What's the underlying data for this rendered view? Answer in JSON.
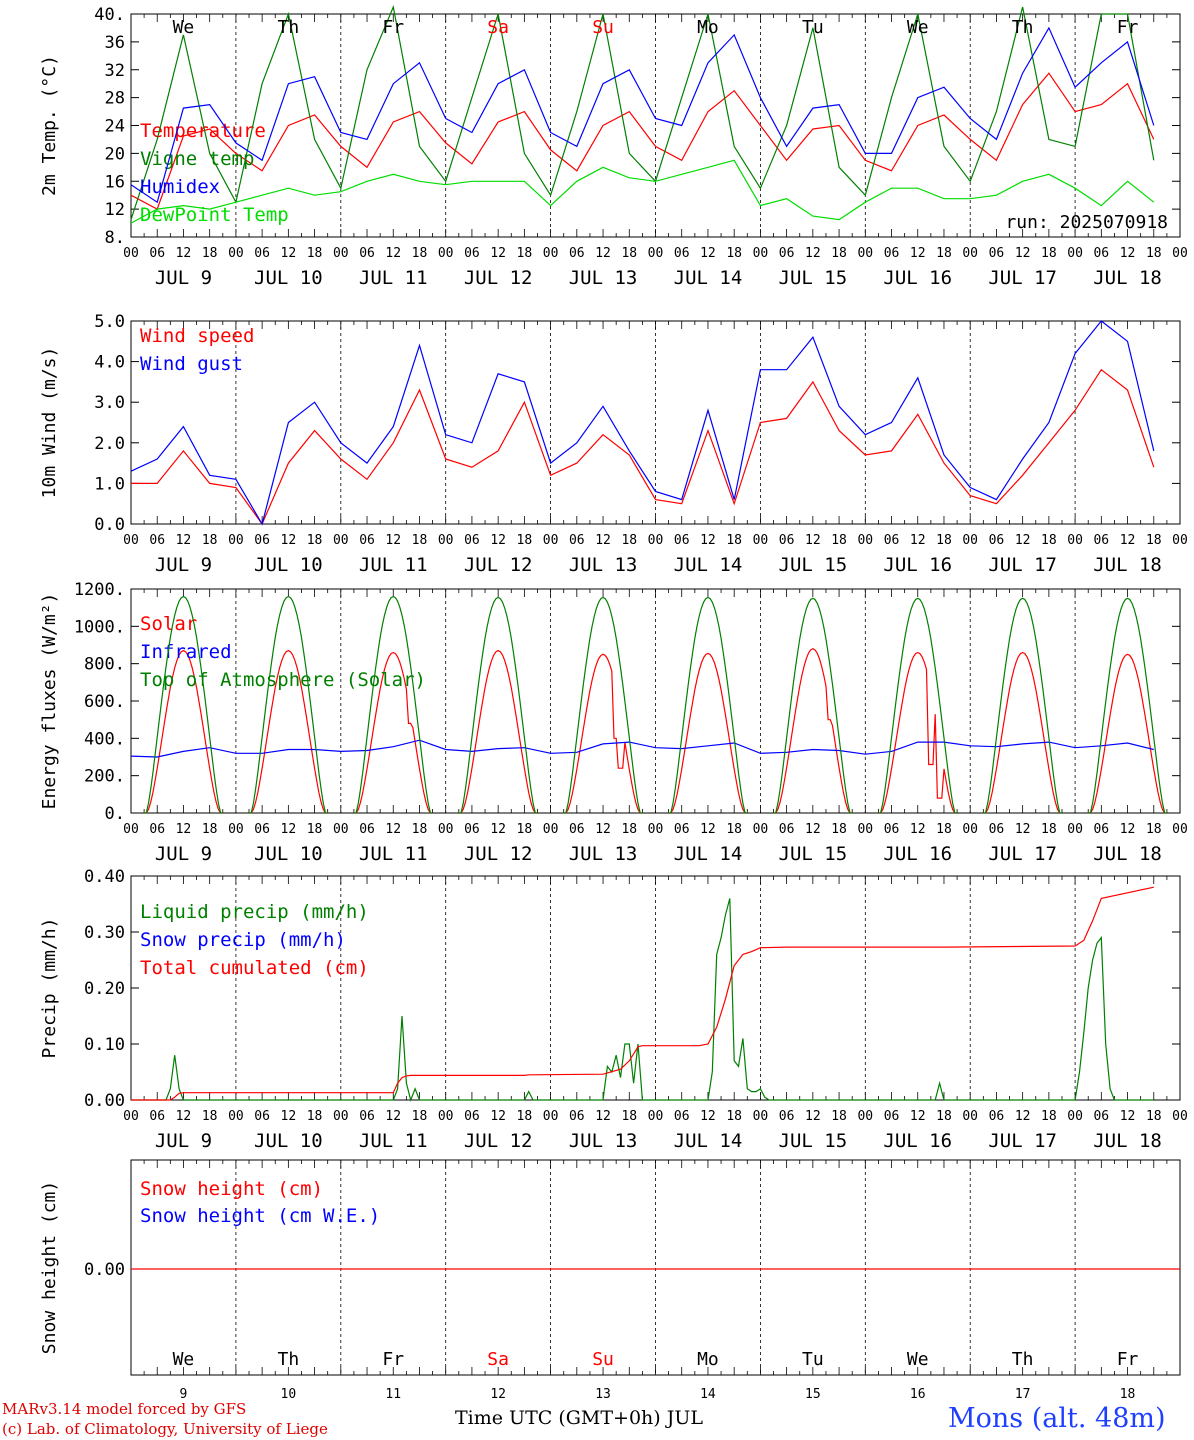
{
  "colors": {
    "red": "#ff0000",
    "green": "#008000",
    "blue": "#0000ff",
    "lightgreen": "#00dd00",
    "weekend": "#ff0000"
  },
  "days": [
    "We",
    "Th",
    "Fr",
    "Sa",
    "Su",
    "Mo",
    "Tu",
    "We",
    "Th",
    "Fr"
  ],
  "weekend_days": [
    3,
    4
  ],
  "dates": [
    "JUL  9",
    "JUL 10",
    "JUL 11",
    "JUL 12",
    "JUL 13",
    "JUL 14",
    "JUL 15",
    "JUL 16",
    "JUL 17",
    "JUL 18"
  ],
  "day_numbers": [
    "9",
    "10",
    "11",
    "12",
    "13",
    "14",
    "15",
    "16",
    "17",
    "18"
  ],
  "hour_ticks": [
    "00",
    "06",
    "12",
    "18"
  ],
  "footer": {
    "model": "MARv3.14 model forced by GFS",
    "credit": "(c) Lab. of Climatology, University of Liege",
    "xlabel": "Time UTC (GMT+0h) JUL",
    "location": "Mons (alt. 48m)"
  },
  "chart_data": [
    {
      "type": "line",
      "ylabel": "2m Temp. (°C)",
      "ylim": [
        8,
        40
      ],
      "yticks": [
        "8.",
        "12",
        "16",
        "20",
        "24",
        "28",
        "32",
        "36",
        "40."
      ],
      "annotation": "run: 2025070918",
      "x_unit": "hours since JUL 9 00 UTC",
      "series": [
        {
          "name": "Temperature",
          "color": "red",
          "x": [
            0,
            6,
            12,
            18,
            24,
            30,
            36,
            42,
            48,
            54,
            60,
            66,
            72,
            78,
            84,
            90,
            96,
            102,
            108,
            114,
            120,
            126,
            132,
            138,
            144,
            150,
            156,
            162,
            168,
            174,
            180,
            186,
            192,
            198,
            204,
            210,
            216,
            222,
            228,
            234
          ],
          "values": [
            14,
            12,
            22.5,
            23.5,
            20,
            17.5,
            24,
            25.5,
            21,
            18,
            24.5,
            26,
            21.5,
            18.5,
            24.5,
            26,
            20.5,
            17.5,
            24,
            26,
            21,
            19,
            26,
            29,
            24,
            19,
            23.5,
            24,
            19,
            17.5,
            24,
            25.5,
            22,
            19,
            27,
            31.5,
            26,
            27,
            30,
            22
          ]
        },
        {
          "name": "Vigne temp",
          "color": "green",
          "x": [
            0,
            6,
            12,
            18,
            24,
            30,
            36,
            42,
            48,
            54,
            60,
            66,
            72,
            78,
            84,
            90,
            96,
            102,
            108,
            114,
            120,
            126,
            132,
            138,
            144,
            150,
            156,
            162,
            168,
            174,
            180,
            186,
            192,
            198,
            204,
            210,
            216,
            222,
            228,
            234
          ],
          "values": [
            10.5,
            22,
            37,
            20,
            13,
            30,
            40,
            22,
            15,
            32,
            41,
            21,
            16,
            28,
            40,
            20,
            14,
            26,
            40,
            20,
            16,
            28,
            40,
            21,
            15,
            24,
            38,
            18,
            14,
            28,
            40,
            21,
            16,
            26,
            41,
            22,
            21,
            40,
            40,
            19
          ]
        },
        {
          "name": "Humidex",
          "color": "blue",
          "x": [
            0,
            6,
            12,
            18,
            24,
            30,
            36,
            42,
            48,
            54,
            60,
            66,
            72,
            78,
            84,
            90,
            96,
            102,
            108,
            114,
            120,
            126,
            132,
            138,
            144,
            150,
            156,
            162,
            168,
            174,
            180,
            186,
            192,
            198,
            204,
            210,
            216,
            222,
            228,
            234
          ],
          "values": [
            15.5,
            13,
            26.5,
            27,
            21.5,
            19,
            30,
            31,
            23,
            22,
            30,
            33,
            25,
            23,
            30,
            32,
            23,
            21,
            30,
            32,
            25,
            24,
            33,
            37,
            28,
            21,
            26.5,
            27,
            20,
            20,
            28,
            29.5,
            25,
            22,
            31.5,
            38,
            29.5,
            33,
            36,
            24
          ]
        },
        {
          "name": "DewPoint Temp",
          "color": "lightgreen",
          "x": [
            0,
            6,
            12,
            18,
            24,
            30,
            36,
            42,
            48,
            54,
            60,
            66,
            72,
            78,
            84,
            90,
            96,
            102,
            108,
            114,
            120,
            126,
            132,
            138,
            144,
            150,
            156,
            162,
            168,
            174,
            180,
            186,
            192,
            198,
            204,
            210,
            216,
            222,
            228,
            234
          ],
          "values": [
            10,
            12,
            12.5,
            12,
            13,
            14,
            15,
            14,
            14.5,
            16,
            17,
            16,
            15.5,
            16,
            16,
            16,
            12.5,
            16,
            18,
            16.5,
            16,
            17,
            18,
            19,
            12.5,
            13.5,
            11,
            10.5,
            13,
            15,
            15,
            13.5,
            13.5,
            14,
            16,
            17,
            15,
            12.5,
            16,
            13
          ]
        }
      ]
    },
    {
      "type": "line",
      "ylabel": "10m Wind (m/s)",
      "ylim": [
        0,
        5
      ],
      "yticks": [
        "0.0",
        "1.0",
        "2.0",
        "3.0",
        "4.0",
        "5.0"
      ],
      "x_unit": "hours since JUL 9 00 UTC",
      "series": [
        {
          "name": "Wind speed",
          "color": "red",
          "x": [
            0,
            6,
            12,
            18,
            24,
            30,
            36,
            42,
            48,
            54,
            60,
            66,
            72,
            78,
            84,
            90,
            96,
            102,
            108,
            114,
            120,
            126,
            132,
            138,
            144,
            150,
            156,
            162,
            168,
            174,
            180,
            186,
            192,
            198,
            204,
            210,
            216,
            222,
            228,
            234
          ],
          "values": [
            1,
            1,
            1.8,
            1,
            0.9,
            0,
            1.5,
            2.3,
            1.6,
            1.1,
            2,
            3.3,
            1.6,
            1.4,
            1.8,
            3,
            1.2,
            1.5,
            2.2,
            1.7,
            0.6,
            0.5,
            2.3,
            0.5,
            2.5,
            2.6,
            3.5,
            2.3,
            1.7,
            1.8,
            2.7,
            1.5,
            0.7,
            0.5,
            1.2,
            2,
            2.8,
            3.8,
            3.3,
            1.4
          ]
        },
        {
          "name": "Wind gust",
          "color": "blue",
          "x": [
            0,
            6,
            12,
            18,
            24,
            30,
            36,
            42,
            48,
            54,
            60,
            66,
            72,
            78,
            84,
            90,
            96,
            102,
            108,
            114,
            120,
            126,
            132,
            138,
            144,
            150,
            156,
            162,
            168,
            174,
            180,
            186,
            192,
            198,
            204,
            210,
            216,
            222,
            228,
            234
          ],
          "values": [
            1.3,
            1.6,
            2.4,
            1.2,
            1.1,
            0,
            2.5,
            3,
            2,
            1.5,
            2.4,
            4.4,
            2.2,
            2,
            3.7,
            3.5,
            1.5,
            2,
            2.9,
            1.8,
            0.8,
            0.6,
            2.8,
            0.6,
            3.8,
            3.8,
            4.6,
            2.9,
            2.2,
            2.5,
            3.6,
            1.7,
            0.9,
            0.6,
            1.6,
            2.5,
            4.2,
            5,
            4.5,
            1.8
          ]
        }
      ]
    },
    {
      "type": "line",
      "ylabel": "Energy fluxes (W/m²)",
      "ylim": [
        0,
        1200
      ],
      "yticks": [
        "0.",
        "200.",
        "400.",
        "600.",
        "800.",
        "1000.",
        "1200."
      ],
      "x_unit": "hours since JUL 9 00 UTC",
      "series": [
        {
          "name": "Solar",
          "color": "red",
          "daily_peak": [
            870,
            870,
            860,
            870,
            850,
            855,
            880,
            860,
            860,
            850
          ],
          "day_dips": [
            [],
            [],
            [
              [
                16,
                480
              ]
            ],
            [],
            [
              [
                15,
                400
              ],
              [
                16,
                240
              ]
            ],
            [],
            [
              [
                16,
                500
              ]
            ],
            [
              [
                15,
                260
              ],
              [
                17,
                80
              ]
            ],
            [],
            []
          ]
        },
        {
          "name": "Infrared",
          "color": "blue",
          "x": [
            0,
            6,
            12,
            18,
            24,
            30,
            36,
            42,
            48,
            54,
            60,
            66,
            72,
            78,
            84,
            90,
            96,
            102,
            108,
            114,
            120,
            126,
            132,
            138,
            144,
            150,
            156,
            162,
            168,
            174,
            180,
            186,
            192,
            198,
            204,
            210,
            216,
            222,
            228,
            234
          ],
          "values": [
            305,
            300,
            330,
            350,
            320,
            320,
            340,
            340,
            330,
            335,
            355,
            390,
            340,
            330,
            345,
            350,
            320,
            325,
            370,
            380,
            350,
            345,
            360,
            375,
            320,
            325,
            340,
            335,
            315,
            330,
            380,
            380,
            360,
            355,
            370,
            380,
            350,
            360,
            375,
            340
          ]
        },
        {
          "name": "Top of Atmosphere (Solar)",
          "color": "green",
          "daily_peak": [
            1160,
            1160,
            1160,
            1155,
            1155,
            1155,
            1150,
            1150,
            1150,
            1150
          ]
        }
      ]
    },
    {
      "type": "line",
      "ylabel": "Precip (mm/h)",
      "ylim": [
        0,
        0.4
      ],
      "yticks": [
        "0.00",
        "0.10",
        "0.20",
        "0.30",
        "0.40"
      ],
      "x_unit": "hours since JUL 9 00 UTC",
      "series": [
        {
          "name": "Liquid precip (mm/h)",
          "color": "green",
          "x": [
            0,
            8,
            9,
            10,
            11,
            12,
            13,
            30,
            60,
            61,
            62,
            63,
            64,
            65,
            66,
            67,
            72,
            90,
            91,
            92,
            108,
            109,
            110,
            111,
            112,
            113,
            114,
            115,
            116,
            117,
            132,
            133,
            134,
            135,
            136,
            137,
            138,
            139,
            140,
            141,
            142,
            143,
            144,
            145,
            146,
            147,
            148,
            149,
            150,
            168,
            184,
            185,
            186,
            216,
            217,
            218,
            219,
            220,
            221,
            222,
            223,
            224,
            225,
            226,
            234
          ],
          "values": [
            0,
            0,
            0.02,
            0.08,
            0.02,
            0,
            0,
            0,
            0,
            0.02,
            0.15,
            0.03,
            0,
            0.02,
            0,
            0,
            0,
            0,
            0.015,
            0,
            0,
            0.06,
            0.05,
            0.08,
            0.04,
            0.1,
            0.1,
            0.03,
            0.1,
            0,
            0,
            0.05,
            0.26,
            0.29,
            0.33,
            0.36,
            0.07,
            0.06,
            0.11,
            0.02,
            0.015,
            0.015,
            0.02,
            0.005,
            0,
            0,
            0,
            0,
            0,
            0,
            0,
            0.03,
            0,
            0,
            0.05,
            0.12,
            0.2,
            0.25,
            0.28,
            0.29,
            0.1,
            0.02,
            0,
            0,
            0
          ]
        },
        {
          "name": "Snow precip (mm/h)",
          "color": "blue",
          "values": []
        },
        {
          "name": "Total cumulated (cm)",
          "color": "red",
          "x": [
            0,
            9,
            10,
            11,
            12,
            30,
            60,
            61,
            62,
            63,
            64,
            66,
            90,
            91,
            108,
            112,
            114,
            116,
            117,
            130,
            132,
            134,
            136,
            138,
            140,
            142,
            144,
            150,
            186,
            216,
            218,
            220,
            222,
            234
          ],
          "values": [
            0,
            0,
            0.005,
            0.012,
            0.013,
            0.013,
            0.013,
            0.03,
            0.04,
            0.043,
            0.044,
            0.044,
            0.044,
            0.045,
            0.046,
            0.055,
            0.07,
            0.095,
            0.097,
            0.097,
            0.1,
            0.13,
            0.18,
            0.24,
            0.26,
            0.265,
            0.272,
            0.273,
            0.273,
            0.275,
            0.285,
            0.32,
            0.36,
            0.38
          ]
        }
      ]
    },
    {
      "type": "line",
      "ylabel": "Snow height (cm)",
      "yticks": [
        "0.00"
      ],
      "x_unit": "hours since JUL 9 00 UTC",
      "series": [
        {
          "name": "Snow height (cm)",
          "color": "red",
          "x": [
            0,
            240
          ],
          "values": [
            0,
            0
          ]
        },
        {
          "name": "Snow height (cm W.E.)",
          "color": "blue",
          "values": []
        }
      ]
    }
  ]
}
